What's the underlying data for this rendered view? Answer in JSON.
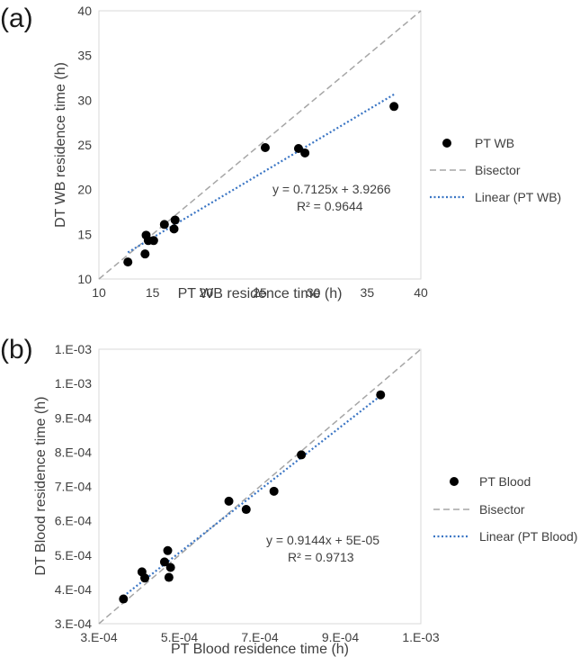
{
  "chart_data": [
    {
      "panel_label": "(a)",
      "type": "scatter",
      "xlabel": "PT WB residence time (h)",
      "ylabel": "DT WB residence time (h)",
      "xlim": [
        10,
        40
      ],
      "ylim": [
        10,
        40
      ],
      "xticks": [
        10,
        15,
        20,
        25,
        30,
        35,
        40
      ],
      "yticks": [
        10,
        15,
        20,
        25,
        30,
        35,
        40
      ],
      "xtick_labels": [
        "10",
        "15",
        "20",
        "25",
        "30",
        "35",
        "40"
      ],
      "ytick_labels": [
        "10",
        "15",
        "20",
        "25",
        "30",
        "35",
        "40"
      ],
      "points": [
        {
          "x": 12.7,
          "y": 11.9
        },
        {
          "x": 14.3,
          "y": 12.8
        },
        {
          "x": 14.4,
          "y": 14.9
        },
        {
          "x": 14.6,
          "y": 14.3
        },
        {
          "x": 15.1,
          "y": 14.3
        },
        {
          "x": 16.1,
          "y": 16.1
        },
        {
          "x": 17.0,
          "y": 15.6
        },
        {
          "x": 17.1,
          "y": 16.6
        },
        {
          "x": 25.5,
          "y": 24.7
        },
        {
          "x": 28.6,
          "y": 24.6
        },
        {
          "x": 29.2,
          "y": 24.1
        },
        {
          "x": 37.5,
          "y": 29.3
        }
      ],
      "series_name": "PT WB",
      "bisector_label": "Bisector",
      "trend_label": "Linear (PT WB)",
      "trend": {
        "slope": 0.7125,
        "intercept": 3.9266,
        "x_range": [
          12.7,
          37.5
        ]
      },
      "equation_text": "y = 0.7125x + 3.9266",
      "r2_text": "R² = 0.9644",
      "legend_position": "right"
    },
    {
      "panel_label": "(b)",
      "type": "scatter",
      "xlabel": "PT Blood residence time (h)",
      "ylabel": "DT Blood residence time (h)",
      "xlim": [
        0.0003,
        0.0011
      ],
      "ylim": [
        0.0003,
        0.0011
      ],
      "xticks": [
        0.0003,
        0.0005,
        0.0007,
        0.0009,
        0.0011
      ],
      "yticks": [
        0.0003,
        0.0004,
        0.0005,
        0.0006,
        0.0007,
        0.0008,
        0.0009,
        0.001,
        0.0011
      ],
      "xtick_labels": [
        "3.E-04",
        "5.E-04",
        "7.E-04",
        "9.E-04",
        "1.E-03"
      ],
      "ytick_labels": [
        "3.E-04",
        "4.E-04",
        "5.E-04",
        "6.E-04",
        "7.E-04",
        "8.E-04",
        "9.E-04",
        "1.E-03",
        "1.E-03"
      ],
      "points": [
        {
          "x": 0.000361,
          "y": 0.000372
        },
        {
          "x": 0.000407,
          "y": 0.000451
        },
        {
          "x": 0.000414,
          "y": 0.000433
        },
        {
          "x": 0.000463,
          "y": 0.00048
        },
        {
          "x": 0.000471,
          "y": 0.000513
        },
        {
          "x": 0.000474,
          "y": 0.000435
        },
        {
          "x": 0.000478,
          "y": 0.000464
        },
        {
          "x": 0.000623,
          "y": 0.000657
        },
        {
          "x": 0.000666,
          "y": 0.000633
        },
        {
          "x": 0.000735,
          "y": 0.000686
        },
        {
          "x": 0.000803,
          "y": 0.000792
        },
        {
          "x": 0.001,
          "y": 0.000967
        }
      ],
      "series_name": "PT Blood",
      "bisector_label": "Bisector",
      "trend_label": "Linear (PT Blood)",
      "trend": {
        "slope": 0.9144,
        "intercept": 5e-05,
        "x_range": [
          0.000361,
          0.001
        ]
      },
      "equation_text": "y = 0.9144x + 5E-05",
      "r2_text": "R² = 0.9713",
      "legend_position": "right"
    }
  ],
  "colors": {
    "point": "#000000",
    "bisector": "#a6a6a6",
    "trend": "#3a75c4",
    "frame": "#d9d9d9",
    "text": "#404040"
  }
}
